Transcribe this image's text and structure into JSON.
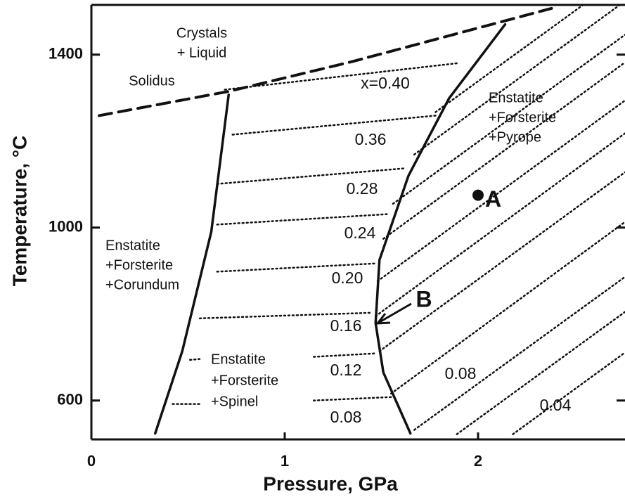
{
  "chart_data": {
    "type": "phase-diagram",
    "xlabel": "Pressure, GPa",
    "ylabel": "Temperature, °C",
    "xlim": [
      0,
      2.76
    ],
    "ylim": [
      510,
      1515
    ],
    "xticks": [
      0,
      1,
      2
    ],
    "yticks": [
      600,
      1000,
      1400
    ],
    "series": [
      {
        "style": "dashed",
        "x": [
          0.04,
          0.71,
          1.35,
          2.38
        ],
        "values": [
          1259,
          1315,
          1384,
          1507
        ]
      },
      {
        "style": "solid",
        "x": [
          0.71,
          0.62,
          0.47,
          0.33
        ],
        "values": [
          1307,
          990,
          714,
          524
        ]
      },
      {
        "style": "solid",
        "x": [
          2.14,
          1.85,
          1.64,
          1.49,
          1.47,
          1.51,
          1.65
        ],
        "values": [
          1470,
          1299,
          1120,
          925,
          779,
          665,
          524
        ]
      },
      {
        "style": "dotted",
        "x": [
          0.69,
          1.89
        ],
        "values": [
          1319,
          1380
        ]
      },
      {
        "style": "dotted",
        "x": [
          0.73,
          1.78
        ],
        "values": [
          1215,
          1259
        ]
      },
      {
        "style": "dotted",
        "x": [
          0.65,
          1.62
        ],
        "values": [
          1101,
          1137
        ]
      },
      {
        "style": "dotted",
        "x": [
          0.65,
          1.53
        ],
        "values": [
          1007,
          1031
        ]
      },
      {
        "style": "dotted",
        "x": [
          0.65,
          1.47
        ],
        "values": [
          898,
          917
        ]
      },
      {
        "style": "dotted",
        "x": [
          0.56,
          1.45
        ],
        "values": [
          790,
          803
        ]
      },
      {
        "style": "dotted",
        "x": [
          1.15,
          1.47
        ],
        "values": [
          701,
          709
        ]
      },
      {
        "style": "dotted",
        "x": [
          1.15,
          1.55
        ],
        "values": [
          600,
          608
        ]
      },
      {
        "style": "dotted",
        "x": [
          0.51,
          0.56
        ],
        "values": [
          694,
          696
        ]
      },
      {
        "style": "dotted",
        "x": [
          0.42,
          0.56
        ],
        "values": [
          592,
          592
        ]
      },
      {
        "style": "dotted",
        "x": [
          1.78,
          2.54
        ],
        "values": [
          1267,
          1514
        ]
      },
      {
        "style": "dotted",
        "x": [
          1.67,
          2.73
        ],
        "values": [
          1169,
          1514
        ]
      },
      {
        "style": "dotted",
        "x": [
          1.56,
          2.76
        ],
        "values": [
          1055,
          1446
        ]
      },
      {
        "style": "dotted",
        "x": [
          1.51,
          2.76
        ],
        "values": [
          974,
          1382
        ]
      },
      {
        "style": "dotted",
        "x": [
          1.48,
          2.76
        ],
        "values": [
          876,
          1294
        ]
      },
      {
        "style": "dotted",
        "x": [
          1.47,
          2.76
        ],
        "values": [
          795,
          1218
        ]
      },
      {
        "style": "dotted",
        "x": [
          1.49,
          2.76
        ],
        "values": [
          714,
          1128
        ]
      },
      {
        "style": "dotted",
        "x": [
          1.55,
          2.76
        ],
        "values": [
          616,
          1013
        ]
      },
      {
        "style": "dotted",
        "x": [
          1.67,
          2.76
        ],
        "values": [
          532,
          886
        ]
      },
      {
        "style": "dotted",
        "x": [
          1.89,
          2.76
        ],
        "values": [
          522,
          805
        ]
      },
      {
        "style": "dotted",
        "x": [
          2.18,
          2.76
        ],
        "values": [
          522,
          711
        ]
      }
    ],
    "points": [
      {
        "label": "A",
        "x": 2.0,
        "y": 1075
      }
    ],
    "annotations": [
      [
        "Crystals",
        "+ Liquid"
      ],
      [
        "Solidus"
      ],
      [
        "x=0.40"
      ],
      [
        "0.36"
      ],
      [
        "0.28"
      ],
      [
        "0.24"
      ],
      [
        "0.20"
      ],
      [
        "0.16"
      ],
      [
        "0.12"
      ],
      [
        "0.08"
      ],
      [
        "0.08"
      ],
      [
        "0.04"
      ],
      [
        "Enstatite",
        "+Forsterite",
        "+Pyrope"
      ],
      [
        "Enstatite",
        "+Forsterite",
        "+Corundum"
      ],
      [
        "Enstatite",
        "+Forsterite",
        "+Spinel"
      ],
      [
        "B"
      ]
    ]
  }
}
